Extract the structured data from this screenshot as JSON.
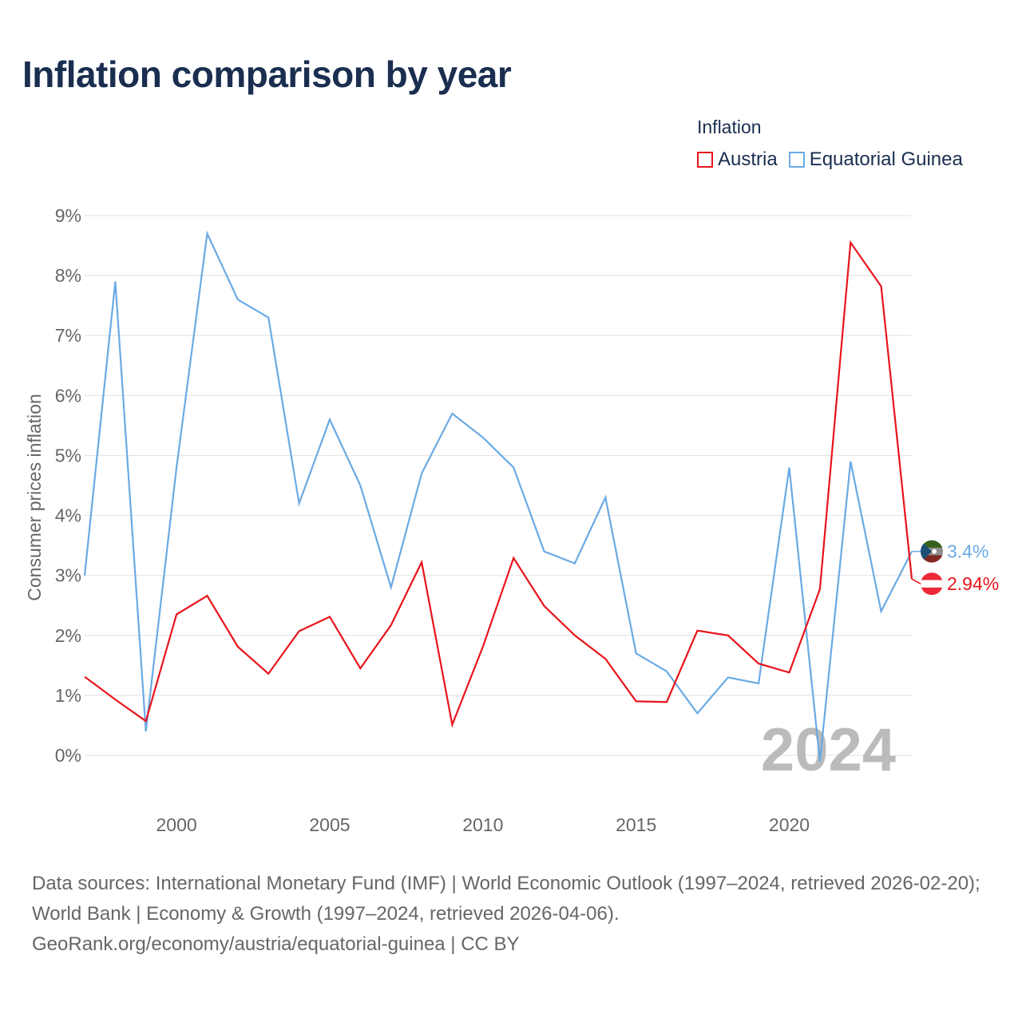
{
  "title": "Inflation comparison by year",
  "legend": {
    "title": "Inflation",
    "items": [
      {
        "label": "Austria",
        "color": "#e8141b"
      },
      {
        "label": "Equatorial Guinea",
        "color": "#6aaae4"
      }
    ]
  },
  "sources": {
    "line1": "Data sources: International Monetary Fund (IMF) | World Economic Outlook (1997–2024, retrieved 2026-02-20); World Bank | Economy & Growth (1997–2024, retrieved 2026-04-06).",
    "line2": "GeoRank.org/economy/austria/equatorial-guinea | CC BY"
  },
  "chart_data": {
    "type": "line",
    "title": "Inflation comparison by year",
    "xlabel": "",
    "ylabel": "Consumer prices inflation",
    "xlim": [
      1997,
      2024
    ],
    "ylim": [
      0,
      9
    ],
    "x_ticks": [
      {
        "value": 2000,
        "label": "2000"
      },
      {
        "value": 2005,
        "label": "2005"
      },
      {
        "value": 2010,
        "label": "2010"
      },
      {
        "value": 2015,
        "label": "2015"
      },
      {
        "value": 2020,
        "label": "2020"
      }
    ],
    "y_ticks": [
      {
        "value": 0,
        "label": "0%"
      },
      {
        "value": 1,
        "label": "1%"
      },
      {
        "value": 2,
        "label": "2%"
      },
      {
        "value": 3,
        "label": "3%"
      },
      {
        "value": 4,
        "label": "4%"
      },
      {
        "value": 5,
        "label": "5%"
      },
      {
        "value": 6,
        "label": "6%"
      },
      {
        "value": 7,
        "label": "7%"
      },
      {
        "value": 8,
        "label": "8%"
      },
      {
        "value": 9,
        "label": "9%"
      }
    ],
    "grid": true,
    "year_watermark": "2024",
    "x": [
      1997,
      1998,
      1999,
      2000,
      2001,
      2002,
      2003,
      2004,
      2005,
      2006,
      2007,
      2008,
      2009,
      2010,
      2011,
      2012,
      2013,
      2014,
      2015,
      2016,
      2017,
      2018,
      2019,
      2020,
      2021,
      2022,
      2023,
      2024
    ],
    "series": [
      {
        "name": "Austria",
        "color": "#e8141b",
        "end_label": "2.94%",
        "flag": "austria",
        "values": [
          1.31,
          0.93,
          0.57,
          2.35,
          2.66,
          1.81,
          1.36,
          2.07,
          2.31,
          1.45,
          2.17,
          3.22,
          0.51,
          1.81,
          3.29,
          2.49,
          2.0,
          1.61,
          0.9,
          0.89,
          2.08,
          2.0,
          1.53,
          1.38,
          2.77,
          8.55,
          7.82,
          2.94
        ]
      },
      {
        "name": "Equatorial Guinea",
        "color": "#6aaae4",
        "end_label": "3.4%",
        "flag": "equatorial-guinea",
        "values": [
          3.0,
          7.9,
          0.4,
          4.8,
          8.7,
          7.6,
          7.3,
          4.2,
          5.6,
          4.5,
          2.8,
          4.7,
          5.7,
          5.3,
          4.8,
          3.4,
          3.2,
          4.3,
          1.7,
          1.4,
          0.7,
          1.3,
          1.2,
          4.8,
          -0.1,
          4.9,
          2.4,
          3.4
        ]
      }
    ]
  }
}
